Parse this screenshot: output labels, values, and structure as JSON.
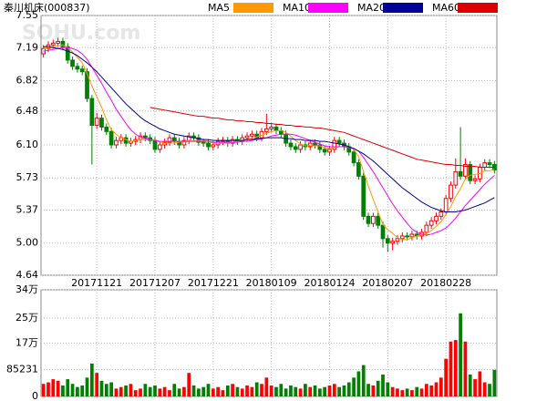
{
  "chart_data": [
    {
      "type": "candlestick",
      "title": "秦川机床(000837)",
      "watermark": "SOHU.com",
      "up_color": "#ff0000",
      "down_color": "#008000",
      "grid": true,
      "ylim": [
        4.64,
        7.55
      ],
      "yticks": [
        4.64,
        {
          "value": 5.0,
          "label": "5.00"
        },
        5.37,
        5.73,
        {
          "value": 6.1,
          "label": "6.10"
        },
        6.48,
        6.82,
        7.19,
        7.55
      ],
      "categories": [
        null,
        null,
        null,
        null,
        null,
        null,
        null,
        null,
        null,
        null,
        null,
        "20171121",
        null,
        null,
        null,
        null,
        null,
        null,
        null,
        null,
        null,
        null,
        null,
        "20171207",
        null,
        null,
        null,
        null,
        null,
        null,
        null,
        null,
        null,
        null,
        null,
        "20171221",
        null,
        null,
        null,
        null,
        null,
        null,
        null,
        null,
        null,
        null,
        null,
        "20180109",
        null,
        null,
        null,
        null,
        null,
        null,
        null,
        null,
        null,
        null,
        null,
        "20180124",
        null,
        null,
        null,
        null,
        null,
        null,
        null,
        null,
        null,
        null,
        null,
        "20180207",
        null,
        null,
        null,
        null,
        null,
        null,
        null,
        null,
        null,
        null,
        null,
        "20180228",
        null,
        null,
        null,
        null,
        null,
        null,
        null,
        null,
        null,
        null
      ],
      "open": [
        7.12,
        7.18,
        7.22,
        7.24,
        7.26,
        7.2,
        7.05,
        6.98,
        6.95,
        6.92,
        6.62,
        6.32,
        6.4,
        6.3,
        6.25,
        6.1,
        6.15,
        6.18,
        6.12,
        6.14,
        6.16,
        6.2,
        6.18,
        6.15,
        6.05,
        6.1,
        6.13,
        6.18,
        6.14,
        6.1,
        6.15,
        6.2,
        6.18,
        6.13,
        6.12,
        6.08,
        6.1,
        6.14,
        6.15,
        6.12,
        6.16,
        6.14,
        6.18,
        6.2,
        6.22,
        6.18,
        6.25,
        6.28,
        6.3,
        6.26,
        6.22,
        6.12,
        6.08,
        6.05,
        6.1,
        6.08,
        6.12,
        6.1,
        6.05,
        6.02,
        6.05,
        6.15,
        6.12,
        6.08,
        6.02,
        5.9,
        5.75,
        5.3,
        5.22,
        5.3,
        5.2,
        5.05,
        5.0,
        5.02,
        5.05,
        5.08,
        5.07,
        5.1,
        5.08,
        5.12,
        5.2,
        5.25,
        5.3,
        5.35,
        5.5,
        5.65,
        5.8,
        5.75,
        5.88,
        5.7,
        5.72,
        5.85,
        5.9,
        5.88
      ],
      "high": [
        7.22,
        7.26,
        7.28,
        7.3,
        7.3,
        7.24,
        7.09,
        7.02,
        6.99,
        6.96,
        6.66,
        6.46,
        6.44,
        6.34,
        6.29,
        6.19,
        6.22,
        6.22,
        6.18,
        6.2,
        6.24,
        6.24,
        6.22,
        6.19,
        6.14,
        6.17,
        6.22,
        6.22,
        6.18,
        6.19,
        6.24,
        6.24,
        6.22,
        6.17,
        6.16,
        6.14,
        6.18,
        6.19,
        6.19,
        6.2,
        6.2,
        6.22,
        6.24,
        6.26,
        6.26,
        6.29,
        6.45,
        6.34,
        6.34,
        6.3,
        6.26,
        6.16,
        6.12,
        6.14,
        6.14,
        6.16,
        6.16,
        6.14,
        6.09,
        6.09,
        6.19,
        6.19,
        6.16,
        6.12,
        6.06,
        5.94,
        5.79,
        5.34,
        5.34,
        5.34,
        5.24,
        5.09,
        5.06,
        5.09,
        5.12,
        5.12,
        5.14,
        5.14,
        5.16,
        5.24,
        5.29,
        5.34,
        5.39,
        5.54,
        5.69,
        5.95,
        6.3,
        5.95,
        5.92,
        5.76,
        5.89,
        5.94,
        5.94,
        5.92
      ],
      "low": [
        7.08,
        7.14,
        7.18,
        7.2,
        7.16,
        7.01,
        6.94,
        6.91,
        6.88,
        6.58,
        5.88,
        6.28,
        6.26,
        6.21,
        6.06,
        6.06,
        6.11,
        6.08,
        6.08,
        6.1,
        6.12,
        6.14,
        6.11,
        6.01,
        6.01,
        6.06,
        6.09,
        6.1,
        6.06,
        6.06,
        6.11,
        6.14,
        6.09,
        6.08,
        6.04,
        6.04,
        6.06,
        6.1,
        6.08,
        6.08,
        6.1,
        6.1,
        6.14,
        6.16,
        6.14,
        6.14,
        6.21,
        6.24,
        6.22,
        6.18,
        6.08,
        6.04,
        6.01,
        6.01,
        6.04,
        6.04,
        6.06,
        6.01,
        5.98,
        5.98,
        6.01,
        6.08,
        6.04,
        5.98,
        5.86,
        5.71,
        5.26,
        5.18,
        5.18,
        5.16,
        4.95,
        4.9,
        4.92,
        4.98,
        5.01,
        5.03,
        5.03,
        5.04,
        5.04,
        5.08,
        5.16,
        5.21,
        5.26,
        5.31,
        5.46,
        5.61,
        5.71,
        5.71,
        5.66,
        5.66,
        5.68,
        5.81,
        5.84,
        5.78
      ],
      "close": [
        7.18,
        7.22,
        7.24,
        7.26,
        7.2,
        7.05,
        6.98,
        6.95,
        6.92,
        6.62,
        6.32,
        6.4,
        6.3,
        6.25,
        6.1,
        6.15,
        6.18,
        6.12,
        6.14,
        6.16,
        6.2,
        6.18,
        6.15,
        6.05,
        6.1,
        6.13,
        6.18,
        6.14,
        6.1,
        6.15,
        6.2,
        6.18,
        6.13,
        6.12,
        6.08,
        6.1,
        6.14,
        6.15,
        6.12,
        6.16,
        6.14,
        6.18,
        6.2,
        6.22,
        6.18,
        6.25,
        6.28,
        6.3,
        6.26,
        6.22,
        6.12,
        6.08,
        6.05,
        6.1,
        6.08,
        6.12,
        6.1,
        6.05,
        6.02,
        6.05,
        6.15,
        6.12,
        6.08,
        6.02,
        5.9,
        5.75,
        5.3,
        5.22,
        5.3,
        5.2,
        5.05,
        5.0,
        5.02,
        5.05,
        5.08,
        5.07,
        5.1,
        5.08,
        5.12,
        5.2,
        5.25,
        5.3,
        5.35,
        5.5,
        5.65,
        5.8,
        5.75,
        5.88,
        5.7,
        5.72,
        5.85,
        5.9,
        5.88,
        5.82
      ],
      "series": [
        {
          "name": "MA5",
          "color": "#ff9900",
          "values": [
            7.18,
            7.19,
            7.2,
            7.21,
            7.22,
            7.19,
            7.14,
            7.08,
            7.02,
            6.9,
            6.76,
            6.64,
            6.52,
            6.38,
            6.27,
            6.22,
            6.18,
            6.16,
            6.14,
            6.15,
            6.16,
            6.16,
            6.16,
            6.15,
            6.13,
            6.12,
            6.12,
            6.12,
            6.13,
            6.14,
            6.15,
            6.15,
            6.15,
            6.15,
            6.14,
            6.12,
            6.11,
            6.12,
            6.12,
            6.13,
            6.14,
            6.15,
            6.16,
            6.18,
            6.19,
            6.21,
            6.23,
            6.25,
            6.26,
            6.26,
            6.24,
            6.2,
            6.15,
            6.11,
            6.09,
            6.09,
            6.09,
            6.09,
            6.07,
            6.06,
            6.07,
            6.08,
            6.08,
            6.08,
            6.05,
            5.97,
            5.8,
            5.64,
            5.49,
            5.35,
            5.21,
            5.15,
            5.11,
            5.06,
            5.04,
            5.04,
            5.06,
            5.08,
            5.09,
            5.11,
            5.14,
            5.19,
            5.24,
            5.32,
            5.41,
            5.52,
            5.61,
            5.72,
            5.76,
            5.77,
            5.78,
            5.81,
            5.81,
            5.83
          ]
        },
        {
          "name": "MA10",
          "color": "#ff00ff",
          "values": [
            7.15,
            7.16,
            7.17,
            7.18,
            7.19,
            7.19,
            7.18,
            7.16,
            7.12,
            7.06,
            6.97,
            6.88,
            6.79,
            6.69,
            6.6,
            6.5,
            6.42,
            6.34,
            6.27,
            6.22,
            6.19,
            6.17,
            6.16,
            6.15,
            6.14,
            6.14,
            6.14,
            6.14,
            6.14,
            6.14,
            6.14,
            6.14,
            6.14,
            6.14,
            6.14,
            6.13,
            6.13,
            6.13,
            6.13,
            6.13,
            6.13,
            6.14,
            6.14,
            6.15,
            6.16,
            6.17,
            6.18,
            6.2,
            6.21,
            6.22,
            6.22,
            6.22,
            6.21,
            6.19,
            6.17,
            6.15,
            6.13,
            6.11,
            6.09,
            6.08,
            6.08,
            6.08,
            6.08,
            6.07,
            6.06,
            6.03,
            5.96,
            5.88,
            5.8,
            5.71,
            5.62,
            5.53,
            5.44,
            5.36,
            5.29,
            5.22,
            5.16,
            5.12,
            5.1,
            5.09,
            5.1,
            5.12,
            5.14,
            5.17,
            5.22,
            5.28,
            5.35,
            5.42,
            5.48,
            5.54,
            5.6,
            5.66,
            5.71,
            5.76
          ]
        },
        {
          "name": "MA20",
          "color": "#000099",
          "values": [
            7.2,
            7.2,
            7.19,
            7.18,
            7.17,
            7.15,
            7.13,
            7.1,
            7.06,
            7.02,
            6.97,
            6.92,
            6.86,
            6.8,
            6.74,
            6.68,
            6.62,
            6.56,
            6.51,
            6.46,
            6.41,
            6.37,
            6.34,
            6.31,
            6.28,
            6.26,
            6.24,
            6.22,
            6.21,
            6.2,
            6.19,
            6.18,
            6.17,
            6.16,
            6.16,
            6.15,
            6.15,
            6.15,
            6.15,
            6.15,
            6.15,
            6.15,
            6.16,
            6.16,
            6.17,
            6.17,
            6.18,
            6.18,
            6.18,
            6.18,
            6.17,
            6.17,
            6.16,
            6.16,
            6.15,
            6.15,
            6.15,
            6.14,
            6.14,
            6.13,
            6.12,
            6.11,
            6.1,
            6.08,
            6.06,
            6.03,
            6.0,
            5.96,
            5.92,
            5.87,
            5.82,
            5.77,
            5.72,
            5.67,
            5.62,
            5.58,
            5.54,
            5.5,
            5.46,
            5.43,
            5.4,
            5.38,
            5.36,
            5.35,
            5.35,
            5.35,
            5.36,
            5.37,
            5.39,
            5.41,
            5.43,
            5.45,
            5.48,
            5.51
          ]
        },
        {
          "name": "MA60",
          "color": "#dd0000",
          "values": [
            null,
            null,
            null,
            null,
            null,
            null,
            null,
            null,
            null,
            null,
            null,
            null,
            null,
            null,
            null,
            null,
            null,
            null,
            null,
            null,
            null,
            null,
            6.52,
            6.51,
            6.5,
            6.49,
            6.48,
            6.47,
            6.46,
            6.45,
            6.44,
            6.43,
            6.42,
            6.42,
            6.41,
            6.4,
            6.4,
            6.39,
            6.38,
            6.38,
            6.37,
            6.37,
            6.36,
            6.36,
            6.35,
            6.35,
            6.34,
            6.34,
            6.33,
            6.33,
            6.32,
            6.32,
            6.31,
            6.31,
            6.3,
            6.3,
            6.29,
            6.29,
            6.28,
            6.27,
            6.26,
            6.25,
            6.24,
            6.22,
            6.2,
            6.18,
            6.16,
            6.14,
            6.12,
            6.1,
            6.08,
            6.06,
            6.04,
            6.02,
            6.0,
            5.98,
            5.96,
            5.94,
            5.93,
            5.92,
            5.91,
            5.9,
            5.89,
            5.88,
            5.88,
            5.87,
            5.87,
            5.86,
            5.86,
            5.86,
            5.85,
            5.85,
            5.85,
            5.85
          ]
        }
      ]
    },
    {
      "type": "bar",
      "ylim": [
        0,
        340000
      ],
      "grid": true,
      "yticks": [
        {
          "value": 0,
          "label": "0"
        },
        85231,
        {
          "value": 170000,
          "label": "17万"
        },
        {
          "value": 250000,
          "label": "25万"
        },
        {
          "value": 340000,
          "label": "34万"
        }
      ],
      "values": [
        40000,
        45000,
        55000,
        50000,
        35000,
        55000,
        40000,
        30000,
        35000,
        60000,
        105000,
        75000,
        50000,
        40000,
        45000,
        25000,
        30000,
        35000,
        40000,
        20000,
        25000,
        40000,
        30000,
        35000,
        25000,
        30000,
        20000,
        40000,
        25000,
        30000,
        75000,
        35000,
        25000,
        30000,
        40000,
        25000,
        30000,
        20000,
        35000,
        40000,
        30000,
        25000,
        35000,
        30000,
        45000,
        40000,
        60000,
        35000,
        30000,
        40000,
        25000,
        35000,
        30000,
        25000,
        40000,
        30000,
        35000,
        25000,
        30000,
        35000,
        40000,
        30000,
        35000,
        45000,
        60000,
        80000,
        100000,
        40000,
        35000,
        50000,
        70000,
        45000,
        30000,
        25000,
        20000,
        25000,
        20000,
        30000,
        25000,
        40000,
        35000,
        45000,
        60000,
        120000,
        175000,
        180000,
        265000,
        175000,
        70000,
        55000,
        80000,
        45000,
        40000,
        85000
      ]
    }
  ]
}
